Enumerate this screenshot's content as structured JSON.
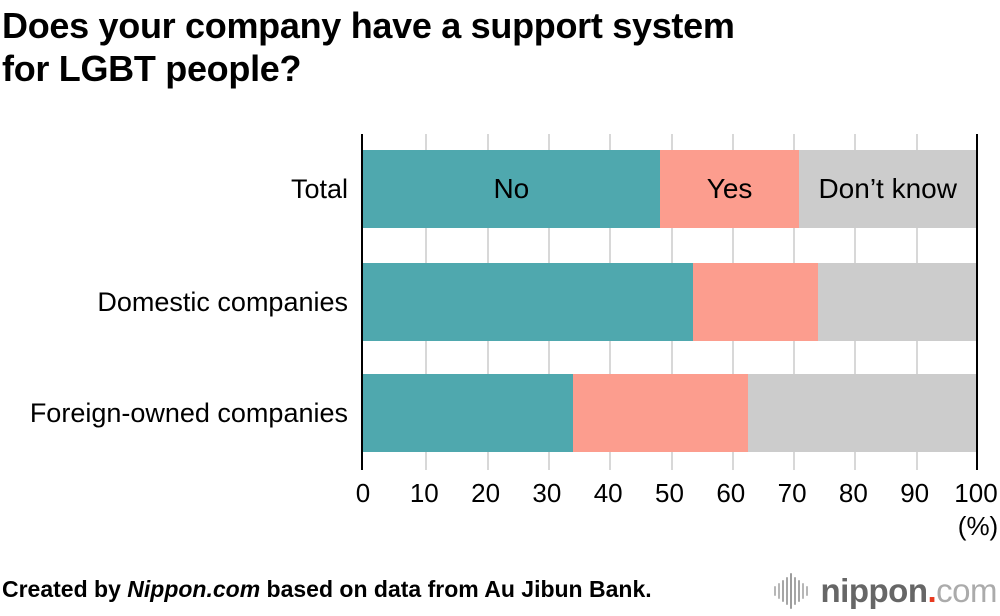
{
  "title": "Does your company have a support system\nfor LGBT people?",
  "chart_data": {
    "type": "bar",
    "orientation": "horizontal",
    "stacked": true,
    "title": "Does your company have a support system for LGBT people?",
    "categories": [
      "Total",
      "Domestic companies",
      "Foreign-owned companies"
    ],
    "series": [
      {
        "name": "No",
        "color": "#4FA8AE",
        "values": [
          48.4,
          53.9,
          34.2
        ]
      },
      {
        "name": "Yes",
        "color": "#FC9D8E",
        "values": [
          22.8,
          20.4,
          28.6
        ]
      },
      {
        "name": "Don’t know",
        "color": "#CCCCCC",
        "values": [
          28.8,
          25.7,
          37.2
        ]
      }
    ],
    "segment_labels_shown_on_row": "Total",
    "x_ticks": [
      0,
      10,
      20,
      30,
      40,
      50,
      60,
      70,
      80,
      90,
      100
    ],
    "x_unit": "(%)",
    "xlim": [
      0,
      100
    ],
    "grid": true,
    "gridline_color": "#d8d8d8",
    "axis_edge_color": "#000000",
    "legend_position": "inside-first-bar"
  },
  "footer": {
    "credit_prefix": "Created by ",
    "credit_source": "Nippon.com",
    "credit_suffix": " based on data from Au Jibun Bank."
  },
  "logo": {
    "word_bold": "nippon",
    "dot": ".",
    "word_light": "com",
    "dot_color": "#E8391F",
    "icon": "soundwave-icon"
  }
}
